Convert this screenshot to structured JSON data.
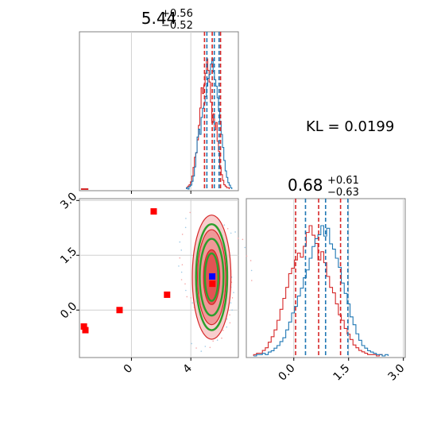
{
  "chart_data": {
    "type": "corner",
    "kl_text": "KL = 0.0199",
    "colors": {
      "hist_blue": "#1f77b4",
      "hist_red": "#d62728",
      "contour_red": "#d62728",
      "contour_green": "#2ca02c",
      "point_red": "#ff0000",
      "point_blue": "#0000ff"
    },
    "param1": {
      "title_main": "5.44",
      "title_sup": "+0.56",
      "title_sub": "−0.52",
      "xlim": [
        -3.5,
        7.2
      ],
      "ticks": [
        {
          "value": 0,
          "label": "0"
        },
        {
          "value": 4,
          "label": "4"
        }
      ],
      "quantiles_red": [
        4.92,
        5.44,
        6.0
      ],
      "quantiles_blue": [
        5.08,
        5.58,
        5.9
      ],
      "hist_blue": {
        "bin_start": 3.7,
        "bin_width": 0.09,
        "counts": [
          1,
          0,
          2,
          3,
          6,
          10,
          17,
          28,
          40,
          46,
          42,
          55,
          62,
          66,
          71,
          79,
          85,
          88,
          96,
          100,
          90,
          84,
          79,
          70,
          60,
          52,
          42,
          32,
          22,
          14,
          9,
          5,
          3,
          1
        ]
      },
      "hist_red": {
        "bin_start": 3.7,
        "bin_width": 0.09,
        "counts": [
          1,
          2,
          3,
          5,
          9,
          15,
          22,
          25,
          34,
          44,
          56,
          70,
          66,
          72,
          80,
          90,
          82,
          74,
          60,
          46,
          52,
          41,
          46,
          33,
          26,
          15,
          10,
          6,
          3,
          2,
          1,
          1
        ]
      }
    },
    "param2": {
      "title_main": "0.68",
      "title_sup": "+0.61",
      "title_sub": "−0.63",
      "ylim": [
        -1.3,
        3.05
      ],
      "xlim": [
        -1.3,
        3.05
      ],
      "ticks": [
        {
          "value": 0.0,
          "label": "0.0"
        },
        {
          "value": 1.5,
          "label": "1.5"
        },
        {
          "value": 3.0,
          "label": "3.0"
        }
      ],
      "quantiles_red": [
        0.05,
        0.68,
        1.28
      ],
      "quantiles_blue": [
        0.32,
        0.87,
        1.48
      ],
      "hist_blue": {
        "bin_start": -1.1,
        "bin_width": 0.08,
        "counts": [
          0,
          1,
          1,
          2,
          1,
          3,
          4,
          6,
          8,
          11,
          14,
          20,
          26,
          33,
          38,
          46,
          52,
          60,
          66,
          75,
          84,
          90,
          93,
          100,
          92,
          98,
          86,
          82,
          75,
          68,
          56,
          48,
          40,
          30,
          24,
          17,
          12,
          8,
          6,
          4,
          3,
          2,
          1,
          1,
          0,
          1
        ]
      },
      "hist_red": {
        "bin_start": -1.1,
        "bin_width": 0.08,
        "counts": [
          1,
          2,
          2,
          4,
          6,
          10,
          14,
          19,
          26,
          34,
          42,
          50,
          60,
          64,
          70,
          75,
          72,
          80,
          90,
          95,
          88,
          82,
          70,
          76,
          68,
          58,
          50,
          46,
          38,
          30,
          26,
          20,
          16,
          12,
          8,
          6,
          4,
          3,
          2,
          1,
          1,
          1,
          0,
          1
        ]
      }
    },
    "scatter_points_red": [
      {
        "x": -3.2,
        "y": -0.45
      },
      {
        "x": -3.1,
        "y": -0.55
      },
      {
        "x": -0.8,
        "y": 0.0
      },
      {
        "x": 1.5,
        "y": 2.7
      },
      {
        "x": 2.4,
        "y": 0.42
      },
      {
        "x": 5.45,
        "y": 0.72
      }
    ],
    "scatter_point_blue": {
      "x": 5.44,
      "y": 0.92
    },
    "contour_center": {
      "x": 5.4,
      "y": 0.9
    },
    "contour_red_levels": [
      {
        "rx": 0.55,
        "ry": 0.75
      },
      {
        "rx": 0.95,
        "ry": 1.3
      },
      {
        "rx": 1.3,
        "ry": 1.7
      }
    ],
    "contour_green_levels": [
      {
        "rx": 0.45,
        "ry": 0.65
      },
      {
        "rx": 0.8,
        "ry": 1.05
      },
      {
        "rx": 1.05,
        "ry": 1.45
      }
    ]
  }
}
